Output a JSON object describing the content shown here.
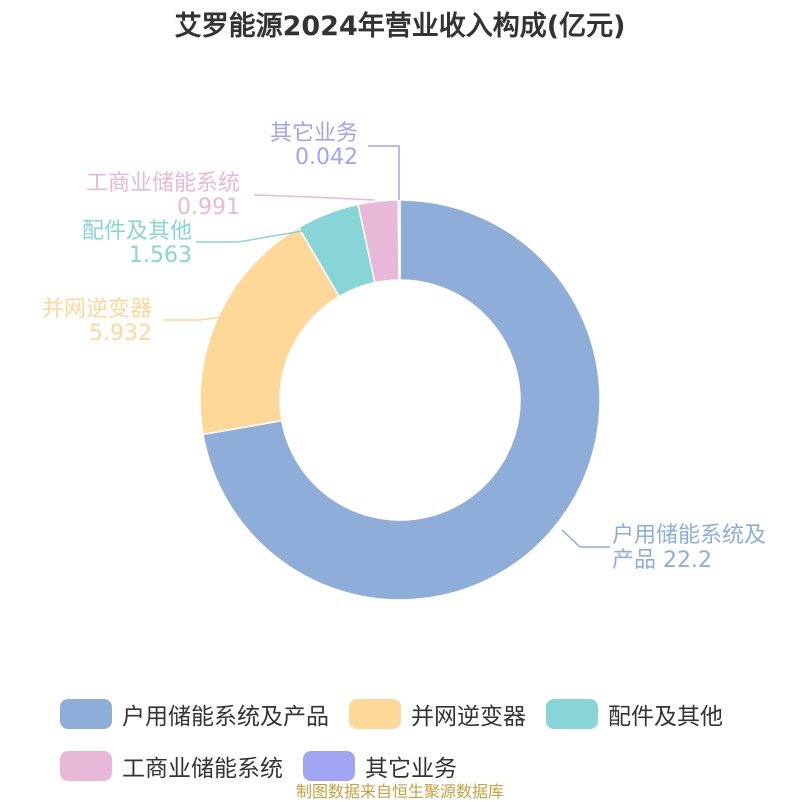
{
  "chart_data": {
    "type": "pie",
    "title": "艾罗能源2024年营业收入构成(亿元)",
    "donut": true,
    "slices": [
      {
        "label": "户用储能系统及产品",
        "value": 22.2,
        "value_text": "22.2",
        "color": "#8eadd9"
      },
      {
        "label": "并网逆变器",
        "value": 5.932,
        "value_text": "5.932",
        "color": "#fdd899"
      },
      {
        "label": "配件及其他",
        "value": 1.563,
        "value_text": "1.563",
        "color": "#87d5d7"
      },
      {
        "label": "工商业储能系统",
        "value": 0.991,
        "value_text": "0.991",
        "color": "#e8b8d8"
      },
      {
        "label": "其它业务",
        "value": 0.042,
        "value_text": "0.042",
        "color": "#a0a4f2"
      }
    ],
    "legend_position": "bottom"
  },
  "legend_rows": [
    [
      {
        "label": "户用储能系统及产品",
        "color": "#8eadd9"
      },
      {
        "label": "并网逆变器",
        "color": "#fdd899"
      },
      {
        "label": "配件及其他",
        "color": "#87d5d7"
      }
    ],
    [
      {
        "label": "工商业储能系统",
        "color": "#e8b8d8"
      },
      {
        "label": "其它业务",
        "color": "#a0a4f2"
      }
    ]
  ],
  "source": "制图数据来自恒生聚源数据库"
}
